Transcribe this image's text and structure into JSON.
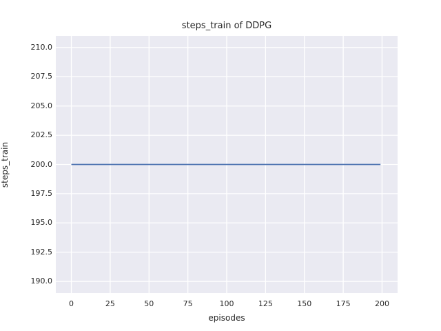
{
  "figure": {
    "background": "#ffffff"
  },
  "chart_data": {
    "type": "line",
    "title": "steps_train of DDPG",
    "xlabel": "episodes",
    "ylabel": "steps_train",
    "xlim": [
      -10,
      210
    ],
    "ylim": [
      189,
      211
    ],
    "xticks": [
      0,
      25,
      50,
      75,
      100,
      125,
      150,
      175,
      200
    ],
    "xtick_labels": [
      "0",
      "25",
      "50",
      "75",
      "100",
      "125",
      "150",
      "175",
      "200"
    ],
    "yticks": [
      190,
      192.5,
      195,
      197.5,
      200,
      202.5,
      205,
      207.5,
      210
    ],
    "ytick_labels": [
      "190.0",
      "192.5",
      "195.0",
      "197.5",
      "200.0",
      "202.5",
      "205.0",
      "207.5",
      "210.0"
    ],
    "grid": true,
    "legend": false,
    "plot_bg_color": "#EAEAF2",
    "grid_color": "#FFFFFF",
    "text_color": "#262626",
    "series": [
      {
        "name": "steps_train",
        "color": "#4C72B0",
        "line_width": 1.8,
        "x": [
          0,
          199
        ],
        "y": [
          200,
          200
        ]
      }
    ]
  }
}
